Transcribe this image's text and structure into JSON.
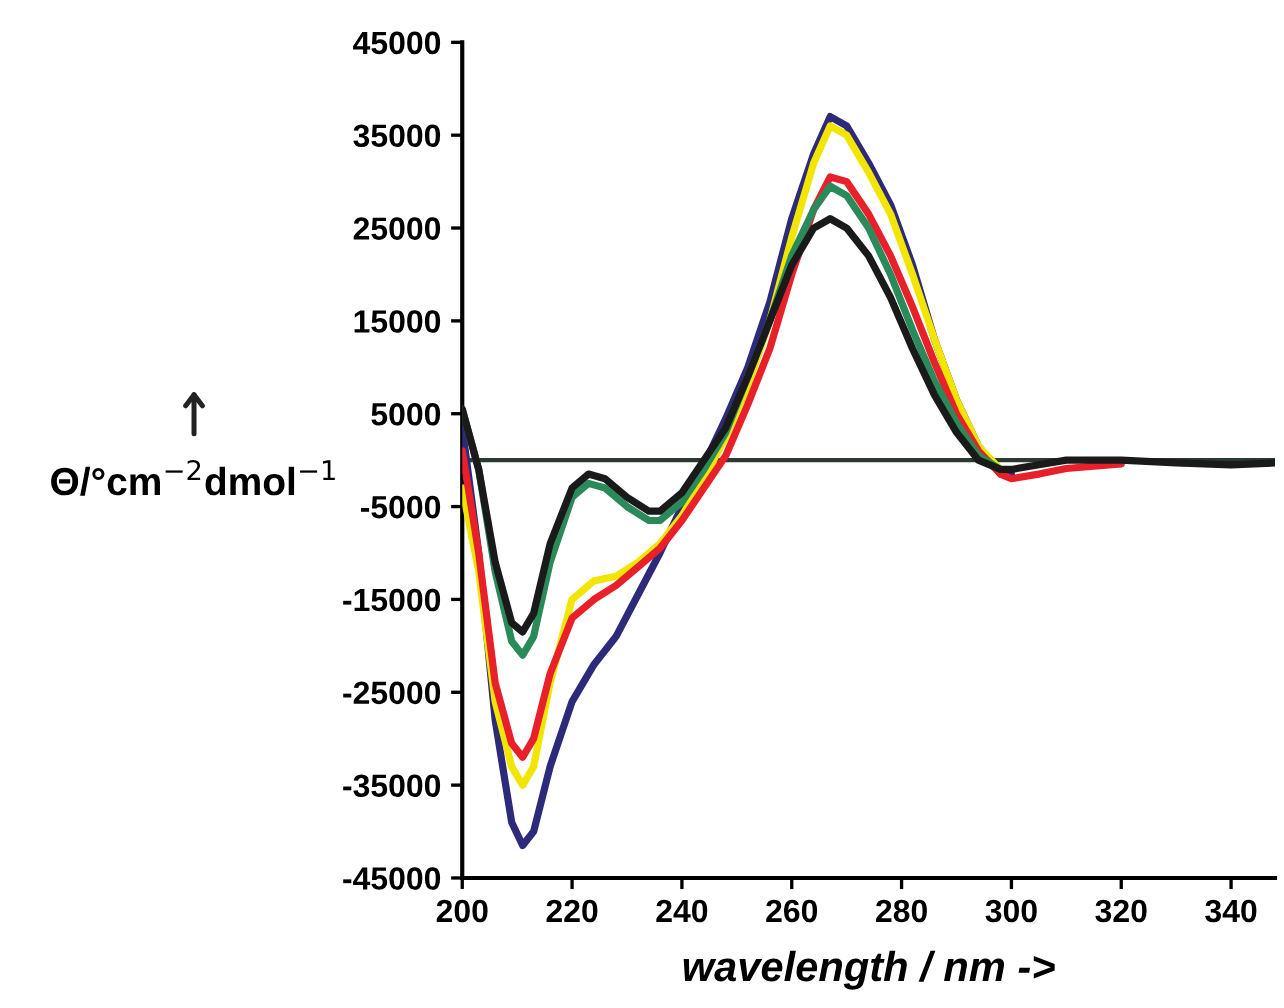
{
  "chart_data": {
    "type": "line",
    "xlabel": "wavelength / nm ->",
    "ylabel": "Θ/°cm$^{−2}$dmol$^{−1}$",
    "xlim": [
      200,
      348
    ],
    "xticks": [
      200,
      220,
      240,
      260,
      280,
      300,
      320,
      340
    ],
    "ylim": [
      -45000,
      45000
    ],
    "yticks": [
      45000,
      35000,
      25000,
      15000,
      5000,
      -5000,
      -15000,
      -25000,
      -35000,
      -45000
    ],
    "grid": false,
    "legend": false,
    "marker": "none",
    "line_style": "solid",
    "ref_lines": [
      {
        "axis": "y",
        "value": 0,
        "label": null,
        "color": "#2a3a30"
      }
    ],
    "series": [
      {
        "color": "#2e2a7a",
        "x": [
          200,
          203,
          206,
          209,
          211,
          213,
          216,
          220,
          224,
          228,
          232,
          236,
          240,
          244,
          248,
          252,
          256,
          260,
          264,
          267,
          270,
          274,
          278,
          282,
          286,
          290,
          294,
          298,
          300
        ],
        "values": [
          3500,
          -10000,
          -28000,
          -39000,
          -41500,
          -40000,
          -33000,
          -26000,
          -22000,
          -19000,
          -14500,
          -10000,
          -5000,
          -500,
          4500,
          10000,
          17000,
          26000,
          33000,
          37000,
          36000,
          32000,
          27500,
          21000,
          13000,
          6500,
          1500,
          -1500,
          -1500
        ]
      },
      {
        "color": "#f2e600",
        "x": [
          200,
          203,
          206,
          209,
          211,
          213,
          216,
          220,
          224,
          228,
          232,
          236,
          240,
          244,
          248,
          252,
          256,
          260,
          264,
          267,
          270,
          274,
          278,
          282,
          286,
          290,
          294,
          298
        ],
        "values": [
          -3000,
          -12000,
          -26000,
          -33000,
          -35000,
          -33000,
          -24000,
          -15000,
          -13000,
          -12500,
          -11000,
          -9000,
          -6000,
          -2000,
          2500,
          8000,
          15000,
          24000,
          32000,
          36000,
          35000,
          31000,
          26500,
          20000,
          13000,
          6500,
          1500,
          -1000
        ]
      },
      {
        "color": "#e8202a",
        "x": [
          200,
          203,
          206,
          209,
          211,
          213,
          216,
          220,
          224,
          228,
          232,
          236,
          240,
          244,
          248,
          252,
          256,
          260,
          264,
          267,
          270,
          274,
          278,
          282,
          286,
          290,
          294,
          298,
          300,
          305,
          310,
          320
        ],
        "values": [
          1000,
          -10000,
          -24000,
          -30500,
          -32000,
          -30000,
          -23000,
          -17000,
          -15000,
          -13500,
          -11500,
          -9500,
          -6500,
          -3000,
          500,
          6000,
          12000,
          20000,
          27000,
          30500,
          30000,
          26500,
          22000,
          16500,
          10500,
          5000,
          1000,
          -1500,
          -2000,
          -1500,
          -900,
          -400
        ]
      },
      {
        "color": "#2a8a5a",
        "x": [
          200,
          203,
          206,
          209,
          211,
          213,
          216,
          220,
          223,
          226,
          230,
          234,
          236,
          240,
          244,
          248,
          252,
          256,
          260,
          264,
          267,
          270,
          274,
          278,
          282,
          286,
          290,
          294,
          298
        ],
        "values": [
          5500,
          -1000,
          -12000,
          -19500,
          -21000,
          -19000,
          -11000,
          -4000,
          -2500,
          -3000,
          -5000,
          -6500,
          -6500,
          -4500,
          -1000,
          3000,
          9000,
          15000,
          22000,
          27000,
          29500,
          28500,
          25000,
          20000,
          14000,
          8500,
          4000,
          500,
          -1000
        ]
      },
      {
        "color": "#1a1a1a",
        "x": [
          200,
          203,
          206,
          209,
          211,
          213,
          216,
          220,
          223,
          226,
          230,
          234,
          236,
          240,
          244,
          248,
          252,
          256,
          260,
          264,
          267,
          270,
          274,
          278,
          282,
          286,
          290,
          294,
          298,
          300,
          305,
          310,
          320,
          330,
          340,
          348
        ],
        "values": [
          5500,
          -1000,
          -11000,
          -17500,
          -18500,
          -16500,
          -9000,
          -3000,
          -1500,
          -2000,
          -4000,
          -5500,
          -5500,
          -3500,
          0,
          3500,
          9000,
          15000,
          21000,
          25000,
          26000,
          25000,
          22000,
          17500,
          12000,
          7000,
          3000,
          0,
          -1000,
          -1000,
          -500,
          0,
          0,
          -300,
          -500,
          -300
        ]
      }
    ]
  }
}
